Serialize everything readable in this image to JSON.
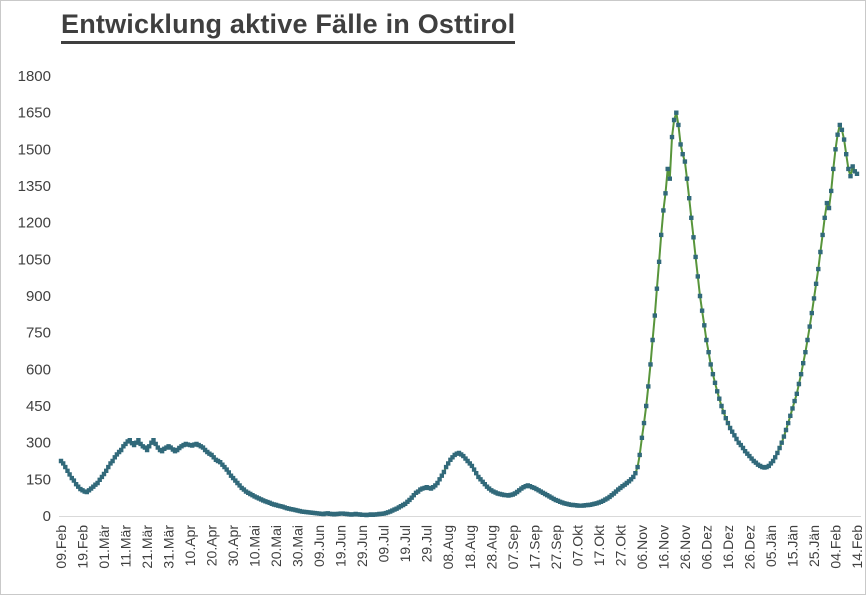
{
  "title": "Entwicklung aktive Fälle in Osttirol",
  "colors": {
    "line": "#58953b",
    "marker": "#31697a",
    "axis_text": "#404040",
    "title_text": "#3f3f3f",
    "axis_line": "#d9d9d9",
    "page_border": "#c9c9c9",
    "background": "#ffffff"
  },
  "chart_data": {
    "type": "line",
    "title": "Entwicklung aktive Fälle in Osttirol",
    "xlabel": "",
    "ylabel": "",
    "ylim": [
      0,
      1800
    ],
    "ytick_step": 150,
    "grid": false,
    "legend": false,
    "x_tick_labels": [
      "09.Feb",
      "19.Feb",
      "01.Mär",
      "11.Mär",
      "21.Mär",
      "31.Mär",
      "10.Apr",
      "20.Apr",
      "30.Apr",
      "10.Mai",
      "20.Mai",
      "30.Mai",
      "09.Jun",
      "19.Jun",
      "29.Jun",
      "09.Jul",
      "19.Jul",
      "29.Jul",
      "08.Aug",
      "18.Aug",
      "28.Aug",
      "07.Sep",
      "17.Sep",
      "27.Sep",
      "07.Okt",
      "17.Okt",
      "27.Okt",
      "06.Nov",
      "16.Nov",
      "26.Nov",
      "06.Dez",
      "16.Dez",
      "26.Dez",
      "05.Jän",
      "15.Jän",
      "25.Jän",
      "04.Feb",
      "14.Feb"
    ],
    "x_tick_day_index": [
      0,
      10,
      20,
      30,
      40,
      50,
      60,
      70,
      80,
      90,
      100,
      110,
      120,
      130,
      140,
      150,
      160,
      170,
      180,
      190,
      200,
      210,
      220,
      230,
      240,
      250,
      260,
      270,
      280,
      290,
      300,
      310,
      320,
      330,
      340,
      350,
      360,
      370
    ],
    "series": [
      {
        "name": "aktive Fälle",
        "marker": "square",
        "values": [
          225,
          215,
          200,
          185,
          170,
          155,
          145,
          130,
          120,
          110,
          105,
          100,
          98,
          105,
          112,
          120,
          128,
          135,
          148,
          160,
          172,
          185,
          200,
          215,
          225,
          240,
          252,
          262,
          270,
          285,
          295,
          305,
          310,
          298,
          290,
          300,
          310,
          295,
          285,
          280,
          270,
          285,
          300,
          310,
          295,
          280,
          270,
          265,
          275,
          280,
          285,
          280,
          272,
          265,
          270,
          278,
          285,
          290,
          295,
          292,
          290,
          288,
          292,
          295,
          290,
          285,
          280,
          270,
          262,
          255,
          250,
          240,
          230,
          225,
          220,
          210,
          200,
          190,
          178,
          165,
          155,
          145,
          135,
          125,
          115,
          108,
          100,
          95,
          90,
          85,
          80,
          76,
          72,
          68,
          64,
          60,
          57,
          54,
          50,
          47,
          45,
          42,
          40,
          38,
          35,
          32,
          30,
          28,
          26,
          24,
          22,
          20,
          18,
          17,
          16,
          15,
          14,
          13,
          12,
          11,
          10,
          9,
          8,
          10,
          11,
          9,
          8,
          7,
          8,
          9,
          10,
          10,
          9,
          8,
          7,
          6,
          7,
          8,
          7,
          6,
          5,
          5,
          4,
          5,
          6,
          5,
          6,
          7,
          8,
          9,
          10,
          12,
          15,
          18,
          22,
          26,
          30,
          35,
          40,
          45,
          50,
          58,
          66,
          75,
          85,
          95,
          100,
          108,
          112,
          115,
          118,
          115,
          112,
          118,
          125,
          135,
          150,
          165,
          180,
          200,
          215,
          230,
          240,
          250,
          255,
          258,
          252,
          245,
          235,
          225,
          215,
          205,
          190,
          175,
          160,
          150,
          140,
          130,
          120,
          112,
          105,
          100,
          96,
          92,
          90,
          88,
          86,
          85,
          84,
          86,
          88,
          92,
          98,
          105,
          112,
          118,
          122,
          125,
          122,
          118,
          115,
          110,
          105,
          100,
          95,
          90,
          85,
          80,
          75,
          70,
          65,
          62,
          58,
          55,
          52,
          50,
          48,
          46,
          45,
          44,
          43,
          42,
          42,
          43,
          44,
          45,
          46,
          48,
          50,
          52,
          55,
          58,
          62,
          67,
          72,
          78,
          85,
          92,
          100,
          108,
          115,
          122,
          128,
          135,
          142,
          150,
          160,
          175,
          200,
          250,
          320,
          380,
          450,
          530,
          620,
          720,
          820,
          930,
          1040,
          1150,
          1250,
          1320,
          1420,
          1380,
          1550,
          1620,
          1650,
          1600,
          1520,
          1480,
          1450,
          1380,
          1300,
          1220,
          1140,
          1060,
          980,
          900,
          840,
          780,
          720,
          670,
          620,
          580,
          545,
          510,
          480,
          450,
          425,
          400,
          380,
          360,
          345,
          330,
          315,
          300,
          290,
          278,
          265,
          255,
          245,
          235,
          225,
          218,
          210,
          205,
          200,
          198,
          200,
          205,
          215,
          225,
          240,
          258,
          278,
          300,
          325,
          352,
          380,
          410,
          440,
          470,
          500,
          540,
          580,
          625,
          670,
          720,
          775,
          830,
          890,
          950,
          1010,
          1080,
          1150,
          1220,
          1280,
          1260,
          1330,
          1420,
          1500,
          1560,
          1600,
          1580,
          1540,
          1480,
          1420,
          1390,
          1430,
          1410,
          1400
        ]
      }
    ]
  }
}
